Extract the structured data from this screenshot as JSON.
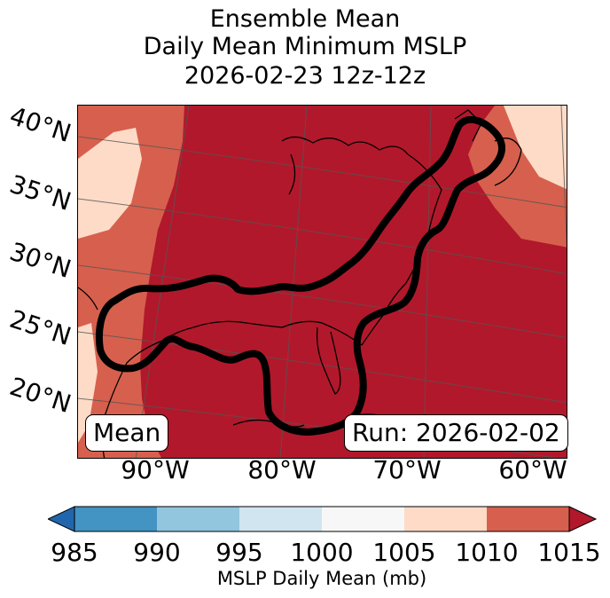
{
  "title": {
    "line1": "Ensemble Mean",
    "line2": "Daily Mean Minimum MSLP",
    "line3": "2026-02-23 12z-12z"
  },
  "map": {
    "lat_labels": [
      "40°N",
      "35°N",
      "30°N",
      "25°N",
      "20°N"
    ],
    "lon_labels": [
      "90°W",
      "80°W",
      "70°W",
      "60°W"
    ],
    "mean_label": "Mean",
    "run_label": "Run: 2026-02-02",
    "colors": {
      "r1015": "#b2182b",
      "r1010": "#d6604d",
      "r1005": "#fddbc7",
      "contour": "#000000"
    }
  },
  "colorbar": {
    "ticks": [
      "985",
      "990",
      "995",
      "1000",
      "1005",
      "1010",
      "1015"
    ],
    "colors": [
      "#4393c3",
      "#92c5de",
      "#d1e5f0",
      "#f7f7f7",
      "#fddbc7",
      "#d6604d"
    ],
    "under_color": "#2166ac",
    "over_color": "#b2182b",
    "label": "MSLP Daily Mean (mb)"
  }
}
